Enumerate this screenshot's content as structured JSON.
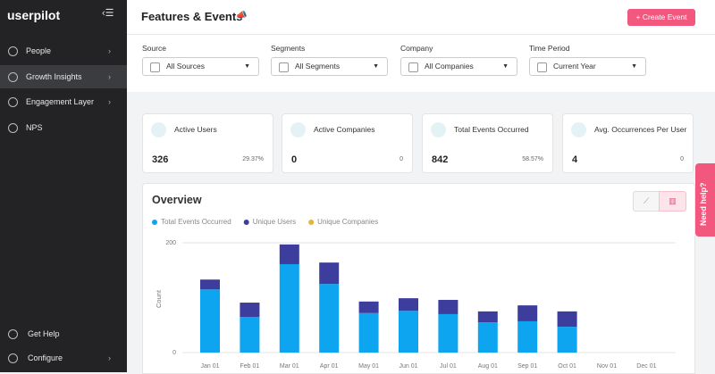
{
  "sidebar": {
    "logo": "userpilot",
    "nav": [
      "People",
      "Growth Insights",
      "Engagement Layer",
      "NPS"
    ],
    "footer": [
      "Get Help",
      "Configure"
    ]
  },
  "header": {
    "title": "Features & Events",
    "button": "Create Event"
  },
  "filters": [
    {
      "label": "Source",
      "value": "All Sources"
    },
    {
      "label": "Segments",
      "value": "All Segments"
    },
    {
      "label": "Company",
      "value": "All Companies"
    },
    {
      "label": "Time Period",
      "value": "Current Year"
    }
  ],
  "cards": [
    {
      "title": "Active Users",
      "value": "326",
      "trend": "29.37%"
    },
    {
      "title": "Active Companies",
      "value": "0",
      "trend": "0"
    },
    {
      "title": "Total Events Occurred",
      "value": "842",
      "trend": "58.57%"
    },
    {
      "title": "Avg. Occurrences Per User",
      "value": "4",
      "trend": "0"
    }
  ],
  "overview": {
    "title": "Overview"
  },
  "help": "Need help?",
  "chart_data": {
    "type": "bar",
    "stacked": true,
    "y_label": "Count",
    "categories": [
      "Jan 01",
      "Feb 01",
      "Mar 01",
      "Apr 01",
      "May 01",
      "Jun 01",
      "Jul 01",
      "Aug 01",
      "Sep 01",
      "Oct 01",
      "Nov 01",
      "Dec 01"
    ],
    "series": [
      {
        "name": "Total Events Occurred",
        "color": "#0ea5f0",
        "values": [
          115,
          65,
          161,
          125,
          72,
          76,
          70,
          55,
          57,
          47,
          0,
          0
        ]
      },
      {
        "name": "Unique Users",
        "color": "#3d3d9e",
        "values": [
          18,
          26,
          36,
          39,
          21,
          23,
          26,
          20,
          29,
          28,
          0,
          0
        ]
      },
      {
        "name": "Unique Companies",
        "color": "#e3b53c",
        "values": [
          0,
          0,
          0,
          0,
          0,
          0,
          0,
          0,
          0,
          0,
          0,
          0
        ]
      }
    ],
    "ylim": [
      0,
      200
    ],
    "yticks": [
      0,
      200
    ],
    "grid": true
  }
}
